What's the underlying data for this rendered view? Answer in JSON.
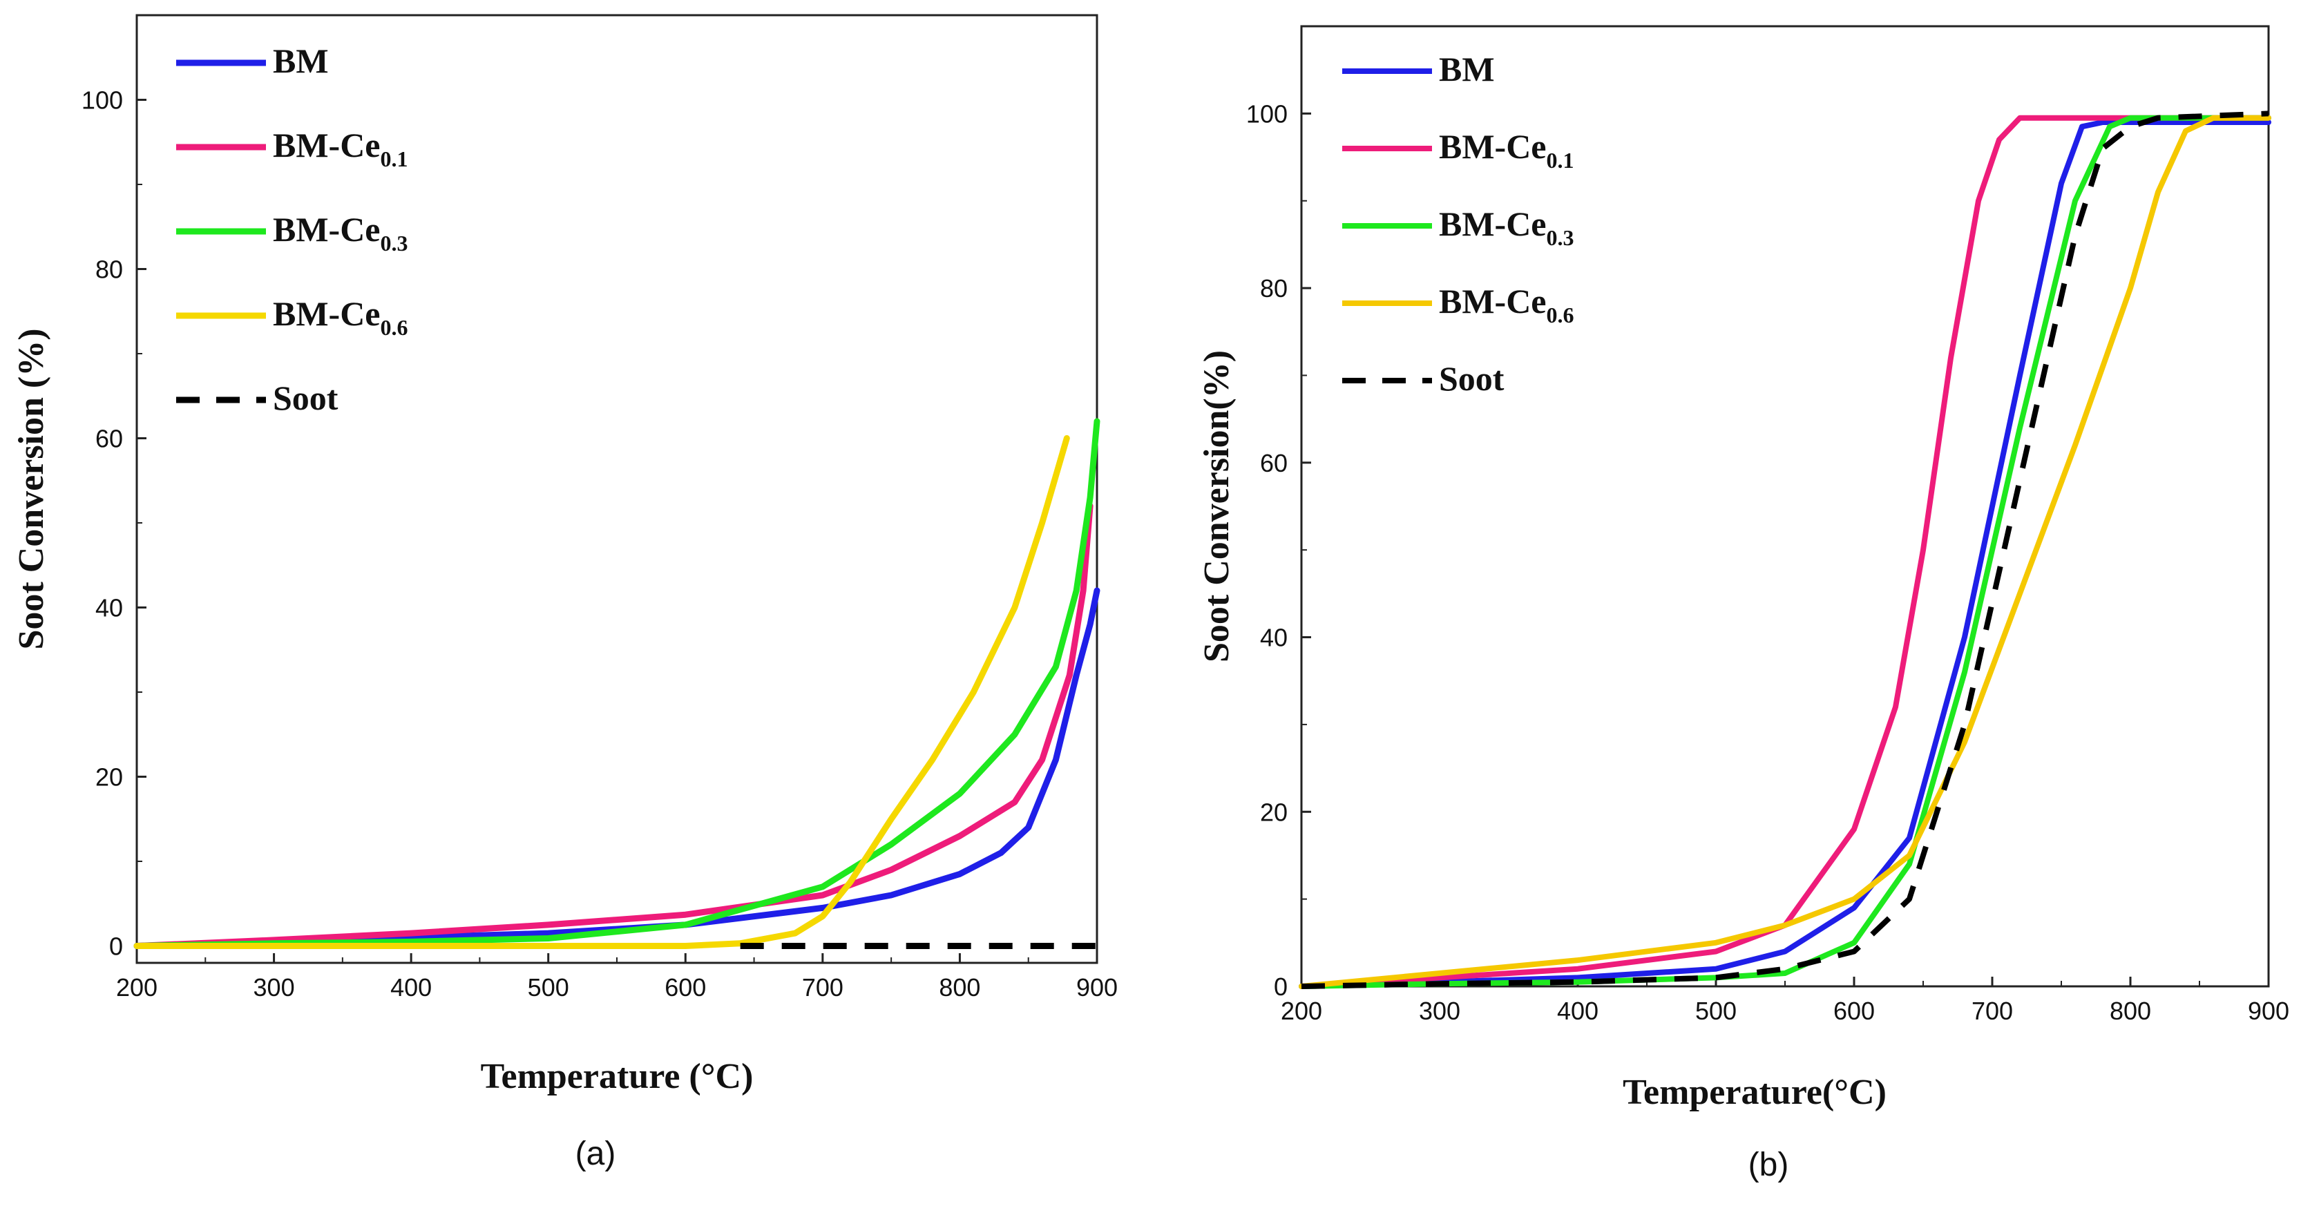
{
  "chart_data": [
    {
      "type": "line",
      "panel_label": "(a)",
      "xlabel": "Temperature (°C)",
      "ylabel": "Soot Conversion (%)",
      "xlim": [
        200,
        900
      ],
      "ylim": [
        -2,
        110
      ],
      "xticks": [
        200,
        300,
        400,
        500,
        600,
        700,
        800,
        900
      ],
      "yticks": [
        0,
        20,
        40,
        60,
        80,
        100
      ],
      "legend_position": "top-left",
      "series": [
        {
          "name": "BM",
          "sub": "",
          "color": "#1f1fe8",
          "dash": false,
          "x": [
            200,
            300,
            400,
            500,
            600,
            700,
            750,
            800,
            830,
            850,
            870,
            885,
            895,
            900
          ],
          "y": [
            0,
            0.5,
            1,
            1.5,
            2.5,
            4.5,
            6,
            8.5,
            11,
            14,
            22,
            32,
            38,
            42
          ]
        },
        {
          "name": "BM-Ce",
          "sub": "0.1",
          "color": "#ee1c7a",
          "dash": false,
          "x": [
            200,
            300,
            400,
            500,
            600,
            700,
            750,
            800,
            840,
            860,
            880,
            890,
            895
          ],
          "y": [
            0,
            0.7,
            1.5,
            2.5,
            3.7,
            6,
            9,
            13,
            17,
            22,
            32,
            42,
            52
          ]
        },
        {
          "name": "BM-Ce",
          "sub": "0.3",
          "color": "#1ee81e",
          "dash": false,
          "x": [
            200,
            300,
            400,
            500,
            600,
            700,
            750,
            800,
            840,
            870,
            885,
            895,
            900
          ],
          "y": [
            0,
            0.3,
            0.5,
            0.9,
            2.5,
            7,
            12,
            18,
            25,
            33,
            42,
            53,
            62
          ]
        },
        {
          "name": "BM-Ce",
          "sub": "0.6",
          "color": "#f5d800",
          "dash": false,
          "x": [
            200,
            500,
            600,
            640,
            680,
            700,
            720,
            750,
            780,
            810,
            840,
            860,
            878
          ],
          "y": [
            0,
            0,
            0,
            0.3,
            1.5,
            3.5,
            7.5,
            15,
            22,
            30,
            40,
            50,
            60
          ]
        },
        {
          "name": "Soot",
          "sub": "",
          "color": "#000000",
          "dash": true,
          "x": [
            640,
            900
          ],
          "y": [
            0,
            0
          ]
        }
      ]
    },
    {
      "type": "line",
      "panel_label": "(b)",
      "xlabel": "Temperature(°C)",
      "ylabel": "Soot Conversion(%)",
      "xlim": [
        200,
        900
      ],
      "ylim": [
        0,
        110
      ],
      "xticks": [
        200,
        300,
        400,
        500,
        600,
        700,
        800,
        900
      ],
      "yticks": [
        0,
        20,
        40,
        60,
        80,
        100
      ],
      "legend_position": "top-left",
      "series": [
        {
          "name": "BM",
          "sub": "",
          "color": "#1f1fe8",
          "dash": false,
          "x": [
            200,
            300,
            400,
            500,
            550,
            600,
            640,
            680,
            720,
            750,
            765,
            780,
            900
          ],
          "y": [
            0,
            0.5,
            1,
            2,
            4,
            9,
            17,
            40,
            70,
            92,
            98.5,
            99,
            99
          ]
        },
        {
          "name": "BM-Ce",
          "sub": "0.1",
          "color": "#ee1c7a",
          "dash": false,
          "x": [
            200,
            300,
            400,
            500,
            550,
            600,
            630,
            650,
            670,
            690,
            705,
            720,
            735,
            900
          ],
          "y": [
            0,
            1,
            2,
            4,
            7,
            18,
            32,
            50,
            72,
            90,
            97,
            99.5,
            99.5,
            99.5
          ]
        },
        {
          "name": "BM-Ce",
          "sub": "0.3",
          "color": "#1ee81e",
          "dash": false,
          "x": [
            200,
            300,
            400,
            500,
            550,
            600,
            640,
            680,
            720,
            760,
            785,
            800,
            900
          ],
          "y": [
            0,
            0.3,
            0.5,
            1,
            1.5,
            5,
            14,
            36,
            64,
            90,
            98.5,
            99.5,
            99.5
          ]
        },
        {
          "name": "BM-Ce",
          "sub": "0.6",
          "color": "#f5c800",
          "dash": false,
          "x": [
            200,
            300,
            400,
            500,
            550,
            600,
            640,
            680,
            720,
            760,
            800,
            820,
            840,
            860,
            900
          ],
          "y": [
            0,
            1.5,
            3,
            5,
            7,
            10,
            15,
            28,
            45,
            62,
            80,
            91,
            98,
            99.5,
            99.5
          ]
        },
        {
          "name": "Soot",
          "sub": "",
          "color": "#000000",
          "dash": true,
          "x": [
            200,
            300,
            400,
            500,
            550,
            600,
            640,
            680,
            720,
            760,
            780,
            800,
            820,
            900
          ],
          "y": [
            0,
            0.3,
            0.5,
            1,
            2,
            4,
            10,
            30,
            58,
            86,
            96,
            98.5,
            99.5,
            100
          ]
        }
      ]
    }
  ]
}
